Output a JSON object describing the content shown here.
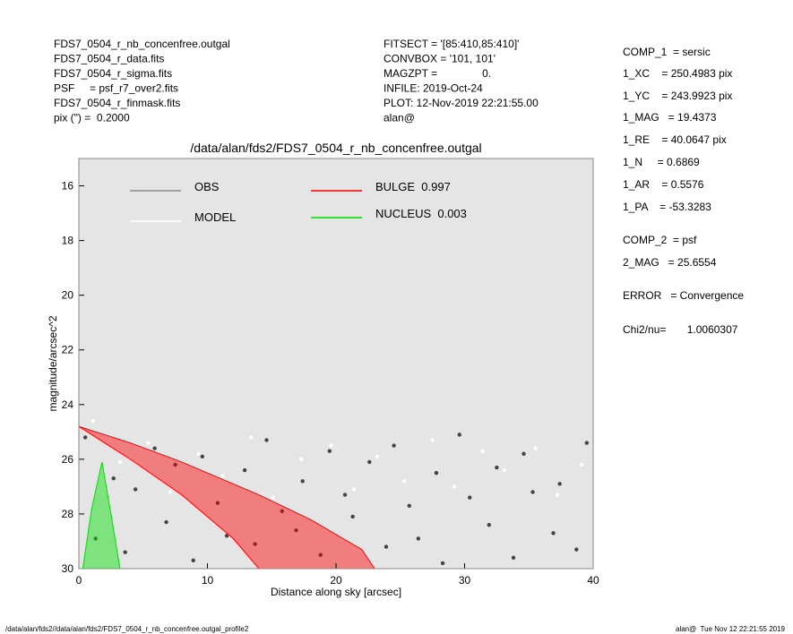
{
  "header_left": [
    "FDS7_0504_r_nb_concenfree.outgal",
    "FDS7_0504_r_data.fits",
    "FDS7_0504_r_sigma.fits",
    "PSF     = psf_r7_over2.fits",
    "FDS7_0504_r_finmask.fits",
    "pix (\") =  0.2000"
  ],
  "header_middle": [
    "FITSECT = '[85:410,85:410]'",
    "CONVBOX = '101, 101'",
    "MAGZPT =               0.",
    "INFILE: 2019-Oct-24",
    "PLOT: 12-Nov-2019 22:21:55.00",
    "alan@"
  ],
  "info_panel": [
    "COMP_1  = sersic",
    "1_XC    = 250.4983 pix",
    "1_YC    = 243.9923 pix",
    "1_MAG   = 19.4373",
    "1_RE    = 40.0647 pix",
    "1_N     = 0.6869",
    "1_AR    = 0.5576",
    "1_PA    = -53.3283",
    "COMP_2  = psf",
    "2_MAG   = 25.6554",
    "ERROR   = Convergence",
    "Chi2/nu=       1.0060307"
  ],
  "footer": {
    "left": "/data/alan/fds2//data/alan/fds2/FDS7_0504_r_nb_concenfree.outgal_profile2",
    "right": "alan@  Tue Nov 12 22:21:55 2019"
  },
  "chart_data": {
    "type": "scatter",
    "title": "/data/alan/fds2/FDS7_0504_r_nb_concenfree.outgal",
    "xlabel": "Distance along sky [arcsec]",
    "ylabel": "magnitude/arcsec^2",
    "xlim": [
      0,
      40
    ],
    "xticks": [
      0,
      10,
      20,
      30,
      40
    ],
    "ylim": [
      30,
      15
    ],
    "yticks": [
      16,
      18,
      20,
      22,
      24,
      26,
      28,
      30
    ],
    "background": "#e5e5e5",
    "series": [
      {
        "name": "OBS",
        "color": "#8c8c8c",
        "point_color": "#444444",
        "x": [
          0.5,
          1.3,
          2.7,
          3.6,
          4.4,
          5.9,
          6.8,
          7.5,
          8.9,
          9.6,
          10.8,
          11.5,
          12.9,
          13.7,
          14.6,
          15.8,
          16.9,
          17.4,
          18.8,
          19.5,
          20.7,
          21.3,
          22.6,
          23.9,
          24.5,
          25.7,
          26.4,
          27.8,
          28.3,
          29.6,
          30.4,
          31.9,
          32.5,
          33.8,
          34.6,
          35.3,
          36.9,
          37.4,
          38.7,
          39.5
        ],
        "values": [
          25.2,
          28.9,
          26.7,
          29.4,
          27.1,
          25.6,
          28.3,
          26.2,
          29.7,
          25.9,
          27.6,
          28.8,
          26.4,
          29.1,
          25.3,
          27.9,
          28.6,
          26.8,
          29.5,
          25.7,
          27.3,
          28.1,
          26.1,
          29.2,
          25.5,
          27.7,
          28.9,
          26.5,
          29.8,
          25.1,
          27.4,
          28.4,
          26.3,
          29.6,
          25.8,
          27.2,
          28.7,
          26.9,
          29.3,
          25.4
        ]
      },
      {
        "name": "MODEL",
        "color": "#ffffff",
        "point_color": "#ffffff",
        "x": [
          1.1,
          3.2,
          5.4,
          7.1,
          9.3,
          11.2,
          13.4,
          15.1,
          17.3,
          19.6,
          21.4,
          23.2,
          25.3,
          27.5,
          29.2,
          31.4,
          33.1,
          35.5,
          37.2,
          39.1
        ],
        "values": [
          24.6,
          26.1,
          25.4,
          27.2,
          25.8,
          26.6,
          25.2,
          27.4,
          26.0,
          25.5,
          27.1,
          25.9,
          26.8,
          25.3,
          27.0,
          25.7,
          26.4,
          25.6,
          27.3,
          26.2
        ]
      },
      {
        "name": "BULGE  0.997",
        "color": "#ff0000",
        "band": true,
        "x": [
          0,
          4,
          8,
          12,
          14,
          18,
          22,
          23
        ],
        "values": [
          24.8,
          25.4,
          26.1,
          26.9,
          27.3,
          28.2,
          29.3,
          30
        ],
        "values_faint": [
          24.8,
          26.0,
          27.3,
          28.9,
          30,
          30,
          30,
          30
        ]
      },
      {
        "name": "NUCLEUS  0.003",
        "color": "#00dd00",
        "band": true,
        "x": [
          0.3,
          1.0,
          1.8,
          2.5,
          3.2
        ],
        "values": [
          30,
          27.8,
          26.1,
          28.0,
          30
        ],
        "values_faint": [
          30,
          30,
          30,
          30,
          30
        ]
      }
    ]
  }
}
